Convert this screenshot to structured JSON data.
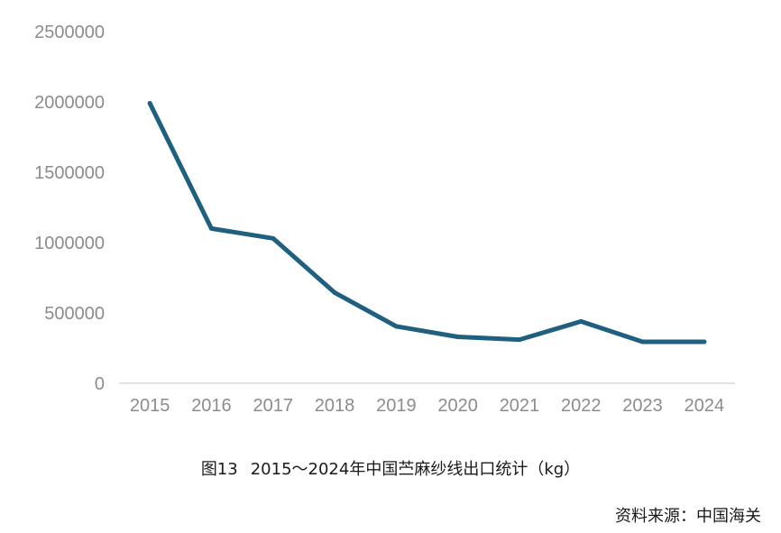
{
  "caption": {
    "number": "图13",
    "title": "2015～2024年中国苎麻纱线出口统计（kg）"
  },
  "source": "资料来源：中国海关",
  "colors": {
    "line": "#1f5f80",
    "axis": "#d9d9d9",
    "tick_text": "#8c8c8c"
  },
  "chart_data": {
    "type": "line",
    "categories": [
      "2015",
      "2016",
      "2017",
      "2018",
      "2019",
      "2020",
      "2021",
      "2022",
      "2023",
      "2024"
    ],
    "series": [
      {
        "values": [
          1990000,
          1100000,
          1030000,
          645000,
          405000,
          330000,
          310000,
          440000,
          295000,
          295000
        ]
      }
    ],
    "ylim": [
      0,
      2500000
    ],
    "yticks": [
      0,
      500000,
      1000000,
      1500000,
      2000000,
      2500000
    ],
    "grid": false,
    "xlabel": "",
    "ylabel": ""
  }
}
